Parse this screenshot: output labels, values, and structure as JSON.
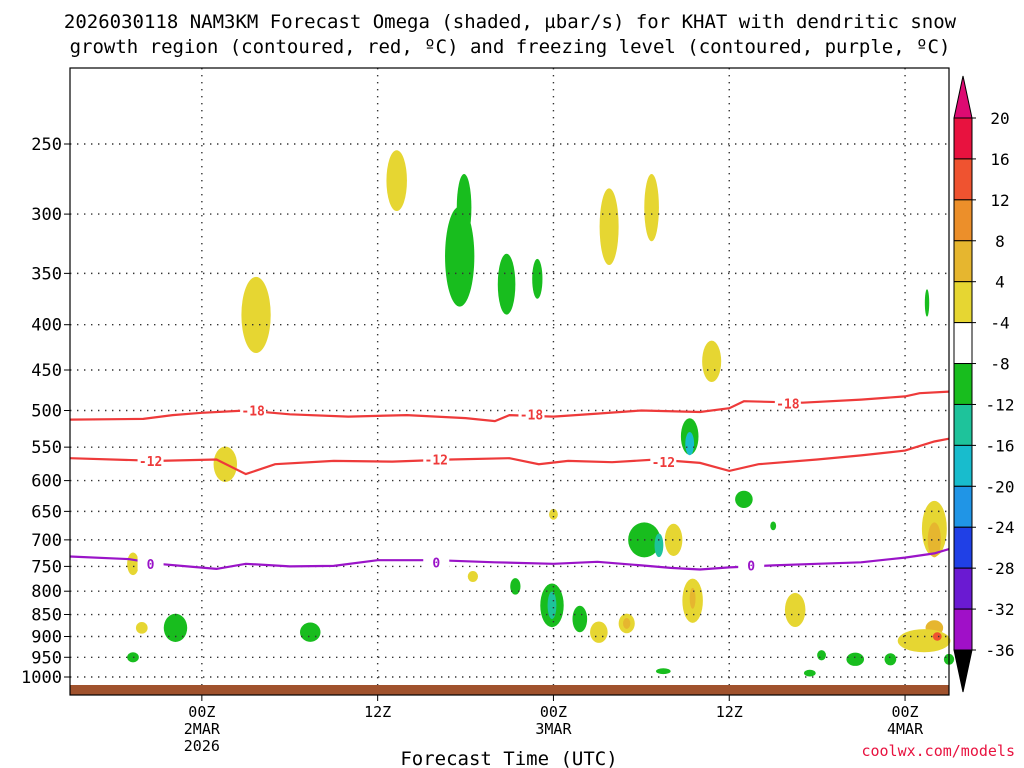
{
  "title_line1": "2026030118 NAM3KM Forecast Omega (shaded, µbar/s) for KHAT with dendritic snow",
  "title_line2": "growth region (contoured, red, ºC) and freezing level (contoured, purple, ºC)",
  "xaxis_title": "Forecast Time (UTC)",
  "credit": "coolwx.com/models",
  "chart_data": {
    "type": "heatmap",
    "y_axis": {
      "scale": "log-pressure",
      "unit": "hPa",
      "ticks": [
        250,
        300,
        350,
        400,
        450,
        500,
        550,
        600,
        650,
        700,
        750,
        800,
        850,
        900,
        950,
        1000
      ],
      "range": [
        1000,
        200
      ],
      "grid": "dotted"
    },
    "x_axis": {
      "unit": "hours after 2026-03-01 18Z",
      "range": [
        -3,
        57
      ],
      "ticks": [
        {
          "hour": 6,
          "label": "00Z",
          "sub": "2MAR",
          "sub2": "2026"
        },
        {
          "hour": 18,
          "label": "12Z",
          "sub": "",
          "sub2": ""
        },
        {
          "hour": 30,
          "label": "00Z",
          "sub": "3MAR",
          "sub2": ""
        },
        {
          "hour": 42,
          "label": "12Z",
          "sub": "",
          "sub2": ""
        },
        {
          "hour": 54,
          "label": "00Z",
          "sub": "4MAR",
          "sub2": ""
        }
      ]
    },
    "colorbar": {
      "levels": [
        "20",
        "16",
        "12",
        "8",
        "4",
        "-4",
        "-8",
        "-12",
        "-16",
        "-20",
        "-24",
        "-28",
        "-32",
        "-36"
      ],
      "colors": [
        "#e8123f",
        "#ef5330",
        "#ec8f2a",
        "#e6b62f",
        "#e6d632",
        "#ffffff",
        "#18bd1e",
        "#1ec39b",
        "#18bccd",
        "#2095e6",
        "#2040e6",
        "#6a1ad2",
        "#a010c8",
        "#a8a8a8"
      ],
      "top_color": "#dd0a72",
      "bottom_color": "#000000"
    },
    "contours": [
      {
        "name": "-18",
        "color": "#ee3a3a",
        "points": [
          [
            -3,
            512
          ],
          [
            2,
            511
          ],
          [
            4,
            506
          ],
          [
            6,
            503
          ],
          [
            9,
            500
          ],
          [
            12,
            505
          ],
          [
            16,
            508
          ],
          [
            20,
            506
          ],
          [
            24,
            510
          ],
          [
            26,
            514
          ],
          [
            27,
            506
          ],
          [
            30,
            508
          ],
          [
            33,
            504
          ],
          [
            36,
            500
          ],
          [
            40,
            502
          ],
          [
            42,
            497
          ],
          [
            43,
            488
          ],
          [
            47,
            490
          ],
          [
            51,
            486
          ],
          [
            54,
            482
          ],
          [
            55,
            478
          ],
          [
            57,
            476
          ]
        ],
        "labels": [
          [
            9.5,
            500
          ],
          [
            28.5,
            505
          ],
          [
            46,
            491
          ]
        ]
      },
      {
        "name": "-12",
        "color": "#ee3a3a",
        "points": [
          [
            -3,
            566
          ],
          [
            3,
            570
          ],
          [
            7,
            568
          ],
          [
            9,
            590
          ],
          [
            11,
            575
          ],
          [
            15,
            570
          ],
          [
            19,
            571
          ],
          [
            23,
            568
          ],
          [
            27,
            566
          ],
          [
            29,
            575
          ],
          [
            31,
            570
          ],
          [
            34,
            572
          ],
          [
            37,
            568
          ],
          [
            40,
            573
          ],
          [
            42,
            585
          ],
          [
            44,
            575
          ],
          [
            48,
            568
          ],
          [
            51,
            562
          ],
          [
            54,
            555
          ],
          [
            56,
            542
          ],
          [
            57,
            538
          ]
        ],
        "labels": [
          [
            2.5,
            570
          ],
          [
            22,
            568
          ],
          [
            37.5,
            572
          ]
        ]
      },
      {
        "name": "0",
        "color": "#9a14c8",
        "points": [
          [
            -3,
            731
          ],
          [
            1,
            736
          ],
          [
            3,
            745
          ],
          [
            5,
            750
          ],
          [
            7,
            755
          ],
          [
            9,
            745
          ],
          [
            12,
            750
          ],
          [
            15,
            749
          ],
          [
            18,
            738
          ],
          [
            22,
            738
          ],
          [
            26,
            742
          ],
          [
            30,
            745
          ],
          [
            33,
            741
          ],
          [
            36,
            748
          ],
          [
            38,
            753
          ],
          [
            40,
            756
          ],
          [
            42,
            752
          ],
          [
            45,
            748
          ],
          [
            48,
            745
          ],
          [
            51,
            742
          ],
          [
            54,
            733
          ],
          [
            56,
            725
          ],
          [
            57,
            717
          ]
        ],
        "labels": [
          [
            2.5,
            745
          ],
          [
            22,
            742
          ],
          [
            43.5,
            748
          ]
        ]
      }
    ],
    "omega_blobs": [
      {
        "center": [
          19.3,
          275
        ],
        "extent": [
          0.7,
          42
        ],
        "value": 4
      },
      {
        "center": [
          9.7,
          390
        ],
        "extent": [
          1.0,
          75
        ],
        "value": 4
      },
      {
        "center": [
          7.6,
          575
        ],
        "extent": [
          0.8,
          50
        ],
        "value": 4
      },
      {
        "center": [
          23.6,
          335
        ],
        "extent": [
          1.0,
          85
        ],
        "value": -8
      },
      {
        "center": [
          23.9,
          295
        ],
        "extent": [
          0.5,
          50
        ],
        "value": -8
      },
      {
        "center": [
          26.8,
          360
        ],
        "extent": [
          0.6,
          55
        ],
        "value": -8
      },
      {
        "center": [
          28.9,
          355
        ],
        "extent": [
          0.35,
          35
        ],
        "value": -8
      },
      {
        "center": [
          33.8,
          310
        ],
        "extent": [
          0.65,
          60
        ],
        "value": 4
      },
      {
        "center": [
          36.7,
          295
        ],
        "extent": [
          0.5,
          50
        ],
        "value": 4
      },
      {
        "center": [
          40.8,
          440
        ],
        "extent": [
          0.65,
          45
        ],
        "value": 4
      },
      {
        "center": [
          39.3,
          535
        ],
        "extent": [
          0.6,
          48
        ],
        "value": -8
      },
      {
        "center": [
          39.3,
          545
        ],
        "extent": [
          0.3,
          30
        ],
        "value": -16
      },
      {
        "center": [
          43.0,
          630
        ],
        "extent": [
          0.6,
          25
        ],
        "value": -8
      },
      {
        "center": [
          30.0,
          655
        ],
        "extent": [
          0.3,
          15
        ],
        "value": 4
      },
      {
        "center": [
          1.3,
          745
        ],
        "extent": [
          0.4,
          40
        ],
        "value": 4
      },
      {
        "center": [
          1.9,
          880
        ],
        "extent": [
          0.4,
          22
        ],
        "value": 4
      },
      {
        "center": [
          4.2,
          880
        ],
        "extent": [
          0.8,
          60
        ],
        "value": -8
      },
      {
        "center": [
          1.3,
          950
        ],
        "extent": [
          0.4,
          20
        ],
        "value": -8
      },
      {
        "center": [
          13.4,
          890
        ],
        "extent": [
          0.7,
          40
        ],
        "value": -8
      },
      {
        "center": [
          24.5,
          770
        ],
        "extent": [
          0.35,
          18
        ],
        "value": 4
      },
      {
        "center": [
          27.4,
          790
        ],
        "extent": [
          0.35,
          30
        ],
        "value": -8
      },
      {
        "center": [
          29.9,
          830
        ],
        "extent": [
          0.8,
          90
        ],
        "value": -8
      },
      {
        "center": [
          29.9,
          830
        ],
        "extent": [
          0.3,
          55
        ],
        "value": -12
      },
      {
        "center": [
          31.8,
          860
        ],
        "extent": [
          0.5,
          55
        ],
        "value": -8
      },
      {
        "center": [
          33.1,
          890
        ],
        "extent": [
          0.6,
          45
        ],
        "value": 4
      },
      {
        "center": [
          35.0,
          870
        ],
        "extent": [
          0.55,
          40
        ],
        "value": 4
      },
      {
        "center": [
          35.0,
          870
        ],
        "extent": [
          0.25,
          20
        ],
        "value": 8
      },
      {
        "center": [
          36.2,
          700
        ],
        "extent": [
          1.1,
          60
        ],
        "value": -8
      },
      {
        "center": [
          37.2,
          710
        ],
        "extent": [
          0.3,
          40
        ],
        "value": -12
      },
      {
        "center": [
          38.2,
          700
        ],
        "extent": [
          0.6,
          55
        ],
        "value": 4
      },
      {
        "center": [
          39.5,
          820
        ],
        "extent": [
          0.7,
          90
        ],
        "value": 4
      },
      {
        "center": [
          39.5,
          815
        ],
        "extent": [
          0.2,
          40
        ],
        "value": 8
      },
      {
        "center": [
          46.5,
          840
        ],
        "extent": [
          0.7,
          70
        ],
        "value": 4
      },
      {
        "center": [
          45.0,
          675
        ],
        "extent": [
          0.2,
          12
        ],
        "value": -8
      },
      {
        "center": [
          56.0,
          680
        ],
        "extent": [
          0.85,
          95
        ],
        "value": 4
      },
      {
        "center": [
          56.0,
          700
        ],
        "extent": [
          0.45,
          60
        ],
        "value": 8
      },
      {
        "center": [
          56.0,
          880
        ],
        "extent": [
          0.6,
          30
        ],
        "value": 8
      },
      {
        "center": [
          55.3,
          910
        ],
        "extent": [
          1.8,
          50
        ],
        "value": 4
      },
      {
        "center": [
          56.2,
          900
        ],
        "extent": [
          0.3,
          15
        ],
        "value": 16
      },
      {
        "center": [
          50.6,
          955
        ],
        "extent": [
          0.6,
          28
        ],
        "value": -8
      },
      {
        "center": [
          53.0,
          955
        ],
        "extent": [
          0.4,
          25
        ],
        "value": -8
      },
      {
        "center": [
          48.3,
          945
        ],
        "extent": [
          0.3,
          20
        ],
        "value": -8
      },
      {
        "center": [
          55.5,
          378
        ],
        "extent": [
          0.15,
          25
        ],
        "value": -8
      },
      {
        "center": [
          57.0,
          955
        ],
        "extent": [
          0.35,
          22
        ],
        "value": -8
      },
      {
        "center": [
          47.5,
          990
        ],
        "extent": [
          0.4,
          12
        ],
        "value": -8
      },
      {
        "center": [
          37.5,
          985
        ],
        "extent": [
          0.5,
          10
        ],
        "value": -8
      }
    ]
  }
}
